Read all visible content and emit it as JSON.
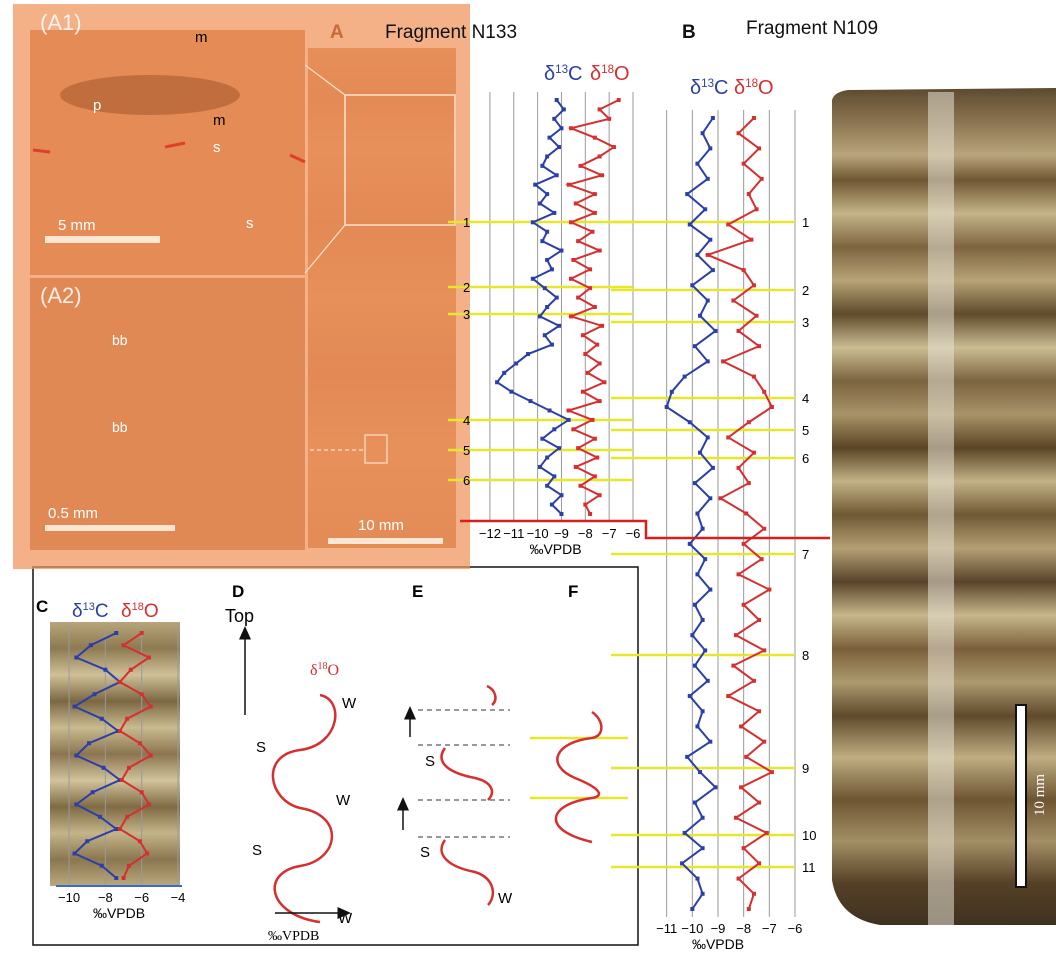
{
  "panels": {
    "a1": "(A1)",
    "a2": "(A2)",
    "a": "A",
    "b": "B",
    "c": "C",
    "d": "D",
    "e": "E",
    "f": "F"
  },
  "fragment_a": "Fragment N133",
  "fragment_b": "Fragment N109",
  "photo_labels": {
    "m1": "m",
    "p": "p",
    "m2": "m",
    "s1": "s",
    "s2": "s",
    "bb1": "bb",
    "bb2": "bb"
  },
  "scale_bars": {
    "a1": "5 mm",
    "a2": "0.5 mm",
    "a": "10 mm",
    "photo": "10 mm"
  },
  "delta": "δ",
  "c13": {
    "mass": "13",
    "el": "C"
  },
  "o18": {
    "mass": "18",
    "el": "O"
  },
  "unit": "‰VPDB",
  "top_label": "Top",
  "season_labels": {
    "s": "S",
    "w": "W"
  },
  "colors": {
    "carbon": "#2b3fa8",
    "oxygen": "#d62f2f",
    "marker": "#e6e62a",
    "overlay": "#f0935a",
    "red_line": "#d61f1f"
  },
  "chart_data": [
    {
      "type": "line",
      "title": "Fragment N133",
      "x_ticks": [
        "−12",
        "−11",
        "−10",
        "−9",
        "−8",
        "−7",
        "−6"
      ],
      "xlabel": "‰VPDB",
      "xlim": [
        -12.5,
        -6
      ],
      "depth_markers": [
        "1",
        "2",
        "3",
        "4",
        "5",
        "6"
      ],
      "series": [
        {
          "name": "δ13C",
          "color": "#2b3fa8",
          "x": [
            -9.2,
            -8.9,
            -9.3,
            -9.0,
            -9.5,
            -9.1,
            -9.6,
            -9.8,
            -9.2,
            -10.1,
            -9.6,
            -9.9,
            -9.3,
            -10.2,
            -9.6,
            -9.8,
            -9.0,
            -9.6,
            -9.4,
            -10.2,
            -9.7,
            -9.2,
            -9.6,
            -9.9,
            -9.1,
            -9.7,
            -9.4,
            -10.4,
            -10.9,
            -11.4,
            -11.7,
            -11.1,
            -10.3,
            -9.5,
            -8.7,
            -9.3,
            -9.8,
            -9.1,
            -9.6,
            -9.9,
            -9.3,
            -9.6,
            -9.0,
            -9.4,
            -9.0
          ]
        },
        {
          "name": "δ18O",
          "color": "#d62f2f",
          "x": [
            -6.6,
            -7.4,
            -7.0,
            -8.6,
            -7.6,
            -6.8,
            -7.4,
            -8.2,
            -7.3,
            -8.7,
            -7.6,
            -8.4,
            -7.6,
            -8.6,
            -7.7,
            -8.3,
            -7.4,
            -8.5,
            -7.8,
            -8.6,
            -7.8,
            -8.3,
            -7.6,
            -8.6,
            -7.3,
            -8.1,
            -7.5,
            -8.0,
            -7.4,
            -7.9,
            -7.2,
            -8.1,
            -7.4,
            -8.7,
            -7.7,
            -8.5,
            -7.6,
            -8.3,
            -7.5,
            -8.4,
            -7.6,
            -8.2,
            -7.4,
            -8.0,
            -7.8
          ]
        }
      ]
    },
    {
      "type": "line",
      "title": "Fragment N109",
      "x_ticks": [
        "−11",
        "−10",
        "−9",
        "−8",
        "−7",
        "−6"
      ],
      "xlabel": "‰VPDB",
      "xlim": [
        -12,
        -6
      ],
      "depth_markers": [
        "1",
        "2",
        "3",
        "4",
        "5",
        "6",
        "7",
        "8",
        "9",
        "10",
        "11"
      ],
      "series": [
        {
          "name": "δ13C",
          "color": "#2b3fa8",
          "x": [
            -9.2,
            -9.6,
            -9.3,
            -9.8,
            -9.4,
            -10.2,
            -9.5,
            -10.1,
            -9.3,
            -9.8,
            -9.2,
            -10.0,
            -9.4,
            -9.7,
            -9.1,
            -9.9,
            -9.4,
            -10.3,
            -10.8,
            -11.0,
            -10.1,
            -9.4,
            -9.7,
            -9.2,
            -9.9,
            -9.3,
            -9.8,
            -9.6,
            -10.1,
            -9.5,
            -9.8,
            -9.3,
            -9.9,
            -9.6,
            -10.0,
            -9.5,
            -9.9,
            -9.4,
            -10.1,
            -9.6,
            -9.8,
            -9.3,
            -10.2,
            -9.7,
            -9.1,
            -9.9,
            -9.6,
            -10.3,
            -9.6,
            -10.4,
            -9.8,
            -9.6,
            -10.0
          ]
        },
        {
          "name": "δ18O",
          "color": "#d62f2f",
          "x": [
            -7.6,
            -8.2,
            -7.4,
            -8.0,
            -7.3,
            -7.8,
            -7.5,
            -8.6,
            -7.7,
            -9.4,
            -8.0,
            -7.6,
            -8.4,
            -7.5,
            -8.2,
            -7.4,
            -8.8,
            -7.6,
            -7.2,
            -6.9,
            -7.8,
            -8.6,
            -7.6,
            -8.2,
            -7.8,
            -8.9,
            -7.9,
            -7.2,
            -8.0,
            -7.3,
            -8.2,
            -7.0,
            -8.0,
            -7.4,
            -8.3,
            -7.2,
            -8.4,
            -7.6,
            -8.6,
            -7.4,
            -8.1,
            -7.2,
            -7.9,
            -6.9,
            -8.1,
            -7.4,
            -8.3,
            -7.1,
            -8.0,
            -7.4,
            -8.2,
            -7.6,
            -7.8
          ]
        }
      ]
    },
    {
      "type": "line",
      "x_ticks": [
        "−10",
        "−8",
        "−6",
        "−4"
      ],
      "xlabel": "‰VPDB",
      "xlim": [
        -10.5,
        -4
      ],
      "series": [
        {
          "name": "δ13C",
          "color": "#2b3fa8",
          "x": [
            -7.4,
            -8.8,
            -9.6,
            -8.0,
            -7.2,
            -8.6,
            -9.7,
            -8.2,
            -7.3,
            -8.9,
            -9.6,
            -8.1,
            -7.2,
            -8.7,
            -9.6,
            -8.3,
            -7.4,
            -9.0,
            -9.7,
            -8.2,
            -7.4
          ]
        },
        {
          "name": "δ18O",
          "color": "#d62f2f",
          "x": [
            -6.0,
            -7.0,
            -5.6,
            -6.6,
            -7.2,
            -6.0,
            -5.5,
            -6.8,
            -7.2,
            -6.1,
            -5.5,
            -6.7,
            -7.1,
            -6.0,
            -5.6,
            -6.8,
            -7.2,
            -6.1,
            -5.7,
            -6.7,
            -7.0
          ]
        }
      ]
    }
  ]
}
